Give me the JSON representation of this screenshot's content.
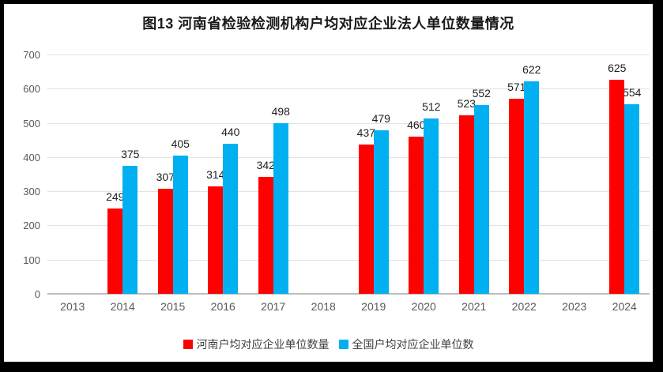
{
  "title": "图13  河南省检验检测机构户均对应企业法人单位数量情况",
  "chart_data": {
    "type": "bar",
    "title": "图13  河南省检验检测机构户均对应企业法人单位数量情况",
    "categories": [
      "2013",
      "2014",
      "2015",
      "2016",
      "2017",
      "2018",
      "2019",
      "2020",
      "2021",
      "2022",
      "2023",
      "2024"
    ],
    "series": [
      {
        "key": "henan",
        "name": "河南户均对应企业单位数量",
        "color": "#FF0000",
        "values": [
          null,
          249,
          307,
          314,
          342,
          null,
          437,
          460,
          523,
          571,
          null,
          625
        ]
      },
      {
        "key": "national",
        "name": "全国户均对应企业单位数",
        "color": "#00B0F0",
        "values": [
          null,
          375,
          405,
          440,
          498,
          null,
          479,
          512,
          552,
          622,
          null,
          554
        ]
      }
    ],
    "xlabel": "",
    "ylabel": "",
    "ylim": [
      0,
      700
    ],
    "yticks": [
      0,
      100,
      200,
      300,
      400,
      500,
      600,
      700
    ],
    "grid": true,
    "data_labels": true,
    "legend_position": "bottom"
  },
  "colors": {
    "background": "#FFFFFF",
    "frame": "#000000",
    "gridline": "#E2E2E2",
    "baseline": "#BDBDBD",
    "tick_text": "#595959",
    "data_label_text": "#1F1F1F",
    "henan_red": "#FF0000",
    "national_blue": "#00B0F0"
  }
}
